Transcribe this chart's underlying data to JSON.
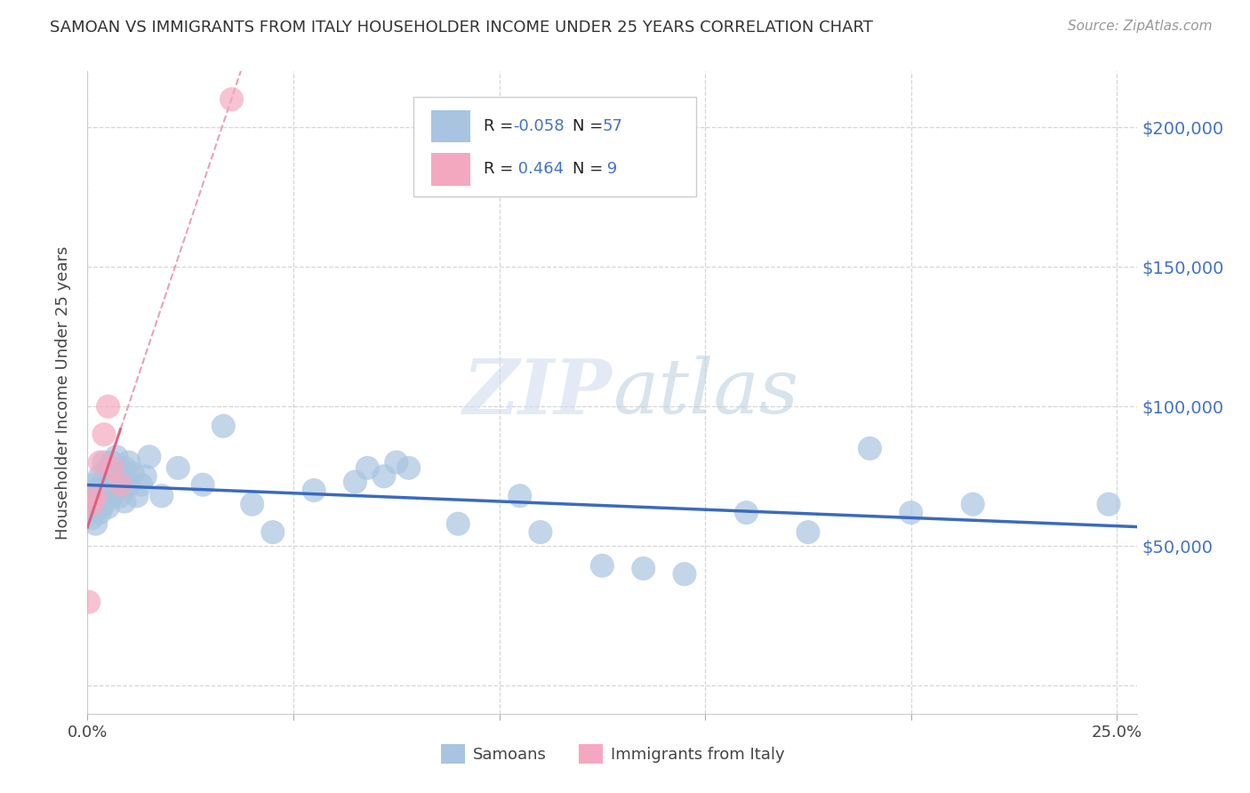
{
  "title": "SAMOAN VS IMMIGRANTS FROM ITALY HOUSEHOLDER INCOME UNDER 25 YEARS CORRELATION CHART",
  "source": "Source: ZipAtlas.com",
  "ylabel": "Householder Income Under 25 years",
  "xlim": [
    0.0,
    0.255
  ],
  "ylim": [
    -10000,
    220000
  ],
  "samoan_color": "#a8c4e0",
  "italy_color": "#f4a8c0",
  "samoan_line_color": "#3a6abf",
  "italy_line_color": "#e06080",
  "background_color": "#ffffff",
  "grid_color": "#cccccc",
  "right_axis_color": "#4472c4",
  "legend_color_r": "#4472c4",
  "watermark_color": "#ccd9ee",
  "samoan_x": [
    0.0005,
    0.001,
    0.001,
    0.0015,
    0.002,
    0.002,
    0.002,
    0.003,
    0.003,
    0.003,
    0.004,
    0.004,
    0.004,
    0.005,
    0.005,
    0.005,
    0.006,
    0.006,
    0.006,
    0.007,
    0.007,
    0.007,
    0.008,
    0.008,
    0.009,
    0.009,
    0.01,
    0.01,
    0.011,
    0.012,
    0.013,
    0.014,
    0.015,
    0.018,
    0.022,
    0.028,
    0.033,
    0.04,
    0.045,
    0.055,
    0.065,
    0.068,
    0.072,
    0.075,
    0.078,
    0.09,
    0.105,
    0.11,
    0.125,
    0.135,
    0.145,
    0.16,
    0.175,
    0.19,
    0.2,
    0.215,
    0.248
  ],
  "samoan_y": [
    65000,
    68000,
    60000,
    72000,
    70000,
    65000,
    58000,
    75000,
    68000,
    62000,
    73000,
    80000,
    65000,
    78000,
    70000,
    64000,
    80000,
    75000,
    68000,
    82000,
    76000,
    70000,
    74000,
    68000,
    78000,
    66000,
    80000,
    72000,
    76000,
    68000,
    72000,
    75000,
    82000,
    68000,
    78000,
    72000,
    93000,
    65000,
    55000,
    70000,
    73000,
    78000,
    75000,
    80000,
    78000,
    58000,
    68000,
    55000,
    43000,
    42000,
    40000,
    62000,
    55000,
    85000,
    62000,
    65000,
    65000
  ],
  "italy_x": [
    0.0003,
    0.001,
    0.002,
    0.003,
    0.004,
    0.005,
    0.006,
    0.008,
    0.035
  ],
  "italy_y": [
    30000,
    65000,
    68000,
    80000,
    90000,
    100000,
    78000,
    72000,
    210000
  ]
}
